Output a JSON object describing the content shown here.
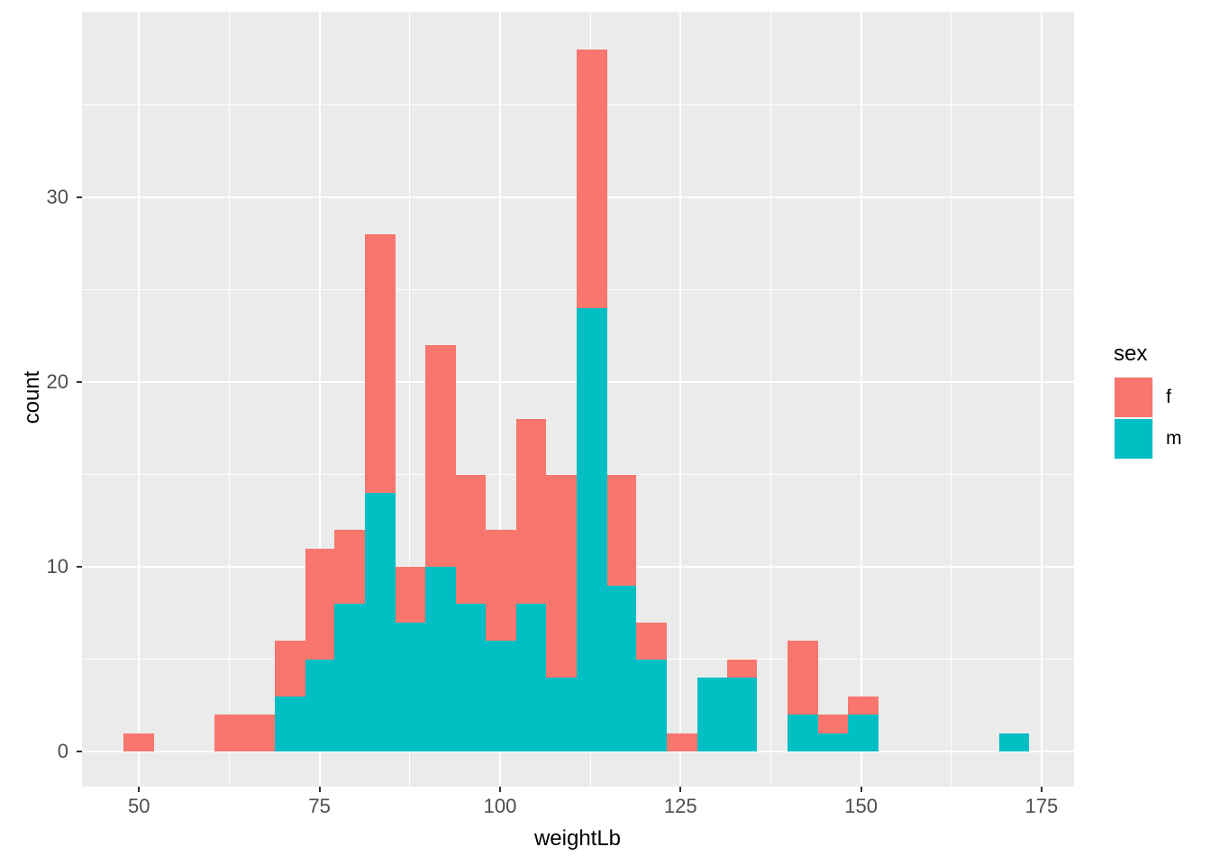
{
  "colors": {
    "f_fill": "#F8766D",
    "m_fill": "#00BFC4",
    "panel_bg": "#EBEBEB",
    "gridline": "#FFFFFF",
    "axis_text": "#4D4D4D",
    "tick_mark": "#333333",
    "title_text": "#000000",
    "background": "#FFFFFF",
    "legend_key_bg": "#F2F2F2"
  },
  "chart_data": {
    "type": "bar",
    "subtype": "stacked-histogram",
    "title": "",
    "xlabel": "weightLb",
    "ylabel": "count",
    "legend": {
      "title": "sex",
      "position": "right",
      "entries": [
        {
          "label": "f",
          "color": "#F8766D"
        },
        {
          "label": "m",
          "color": "#00BFC4"
        }
      ]
    },
    "x_major_ticks": [
      50,
      75,
      100,
      125,
      150,
      175
    ],
    "x_minor_ticks": [
      62.5,
      87.5,
      112.5,
      137.5,
      162.5
    ],
    "y_major_ticks": [
      0,
      10,
      20,
      30
    ],
    "y_minor_ticks": [
      5,
      15,
      25,
      35
    ],
    "xlim": [
      42.1,
      179.5
    ],
    "ylim": [
      -1.9,
      40.05
    ],
    "grid": true,
    "stack_order_bottom_to_top": [
      "m",
      "f"
    ],
    "bin_width": 4.2,
    "bins": [
      {
        "x0": 47.9,
        "x1": 52.1,
        "f": 1,
        "m": 0
      },
      {
        "x0": 60.4,
        "x1": 64.6,
        "f": 2,
        "m": 0
      },
      {
        "x0": 64.6,
        "x1": 68.8,
        "f": 2,
        "m": 0
      },
      {
        "x0": 68.8,
        "x1": 73.0,
        "f": 3,
        "m": 3
      },
      {
        "x0": 73.0,
        "x1": 77.1,
        "f": 6,
        "m": 5
      },
      {
        "x0": 77.1,
        "x1": 81.3,
        "f": 4,
        "m": 8
      },
      {
        "x0": 81.3,
        "x1": 85.5,
        "f": 14,
        "m": 14
      },
      {
        "x0": 85.5,
        "x1": 89.7,
        "f": 3,
        "m": 7
      },
      {
        "x0": 89.7,
        "x1": 93.9,
        "f": 12,
        "m": 10
      },
      {
        "x0": 93.9,
        "x1": 98.0,
        "f": 7,
        "m": 8
      },
      {
        "x0": 98.0,
        "x1": 102.2,
        "f": 6,
        "m": 6
      },
      {
        "x0": 102.2,
        "x1": 106.4,
        "f": 10,
        "m": 8
      },
      {
        "x0": 106.4,
        "x1": 110.6,
        "f": 11,
        "m": 4
      },
      {
        "x0": 110.6,
        "x1": 114.8,
        "f": 14,
        "m": 24
      },
      {
        "x0": 114.8,
        "x1": 118.9,
        "f": 6,
        "m": 9
      },
      {
        "x0": 118.9,
        "x1": 123.1,
        "f": 2,
        "m": 5
      },
      {
        "x0": 123.1,
        "x1": 127.3,
        "f": 1,
        "m": 0
      },
      {
        "x0": 127.3,
        "x1": 131.5,
        "f": 0,
        "m": 4
      },
      {
        "x0": 131.5,
        "x1": 135.6,
        "f": 1,
        "m": 4
      },
      {
        "x0": 139.8,
        "x1": 144.0,
        "f": 4,
        "m": 2
      },
      {
        "x0": 144.0,
        "x1": 148.2,
        "f": 1,
        "m": 1
      },
      {
        "x0": 148.2,
        "x1": 152.4,
        "f": 1,
        "m": 2
      },
      {
        "x0": 169.1,
        "x1": 173.3,
        "f": 0,
        "m": 1
      }
    ]
  }
}
